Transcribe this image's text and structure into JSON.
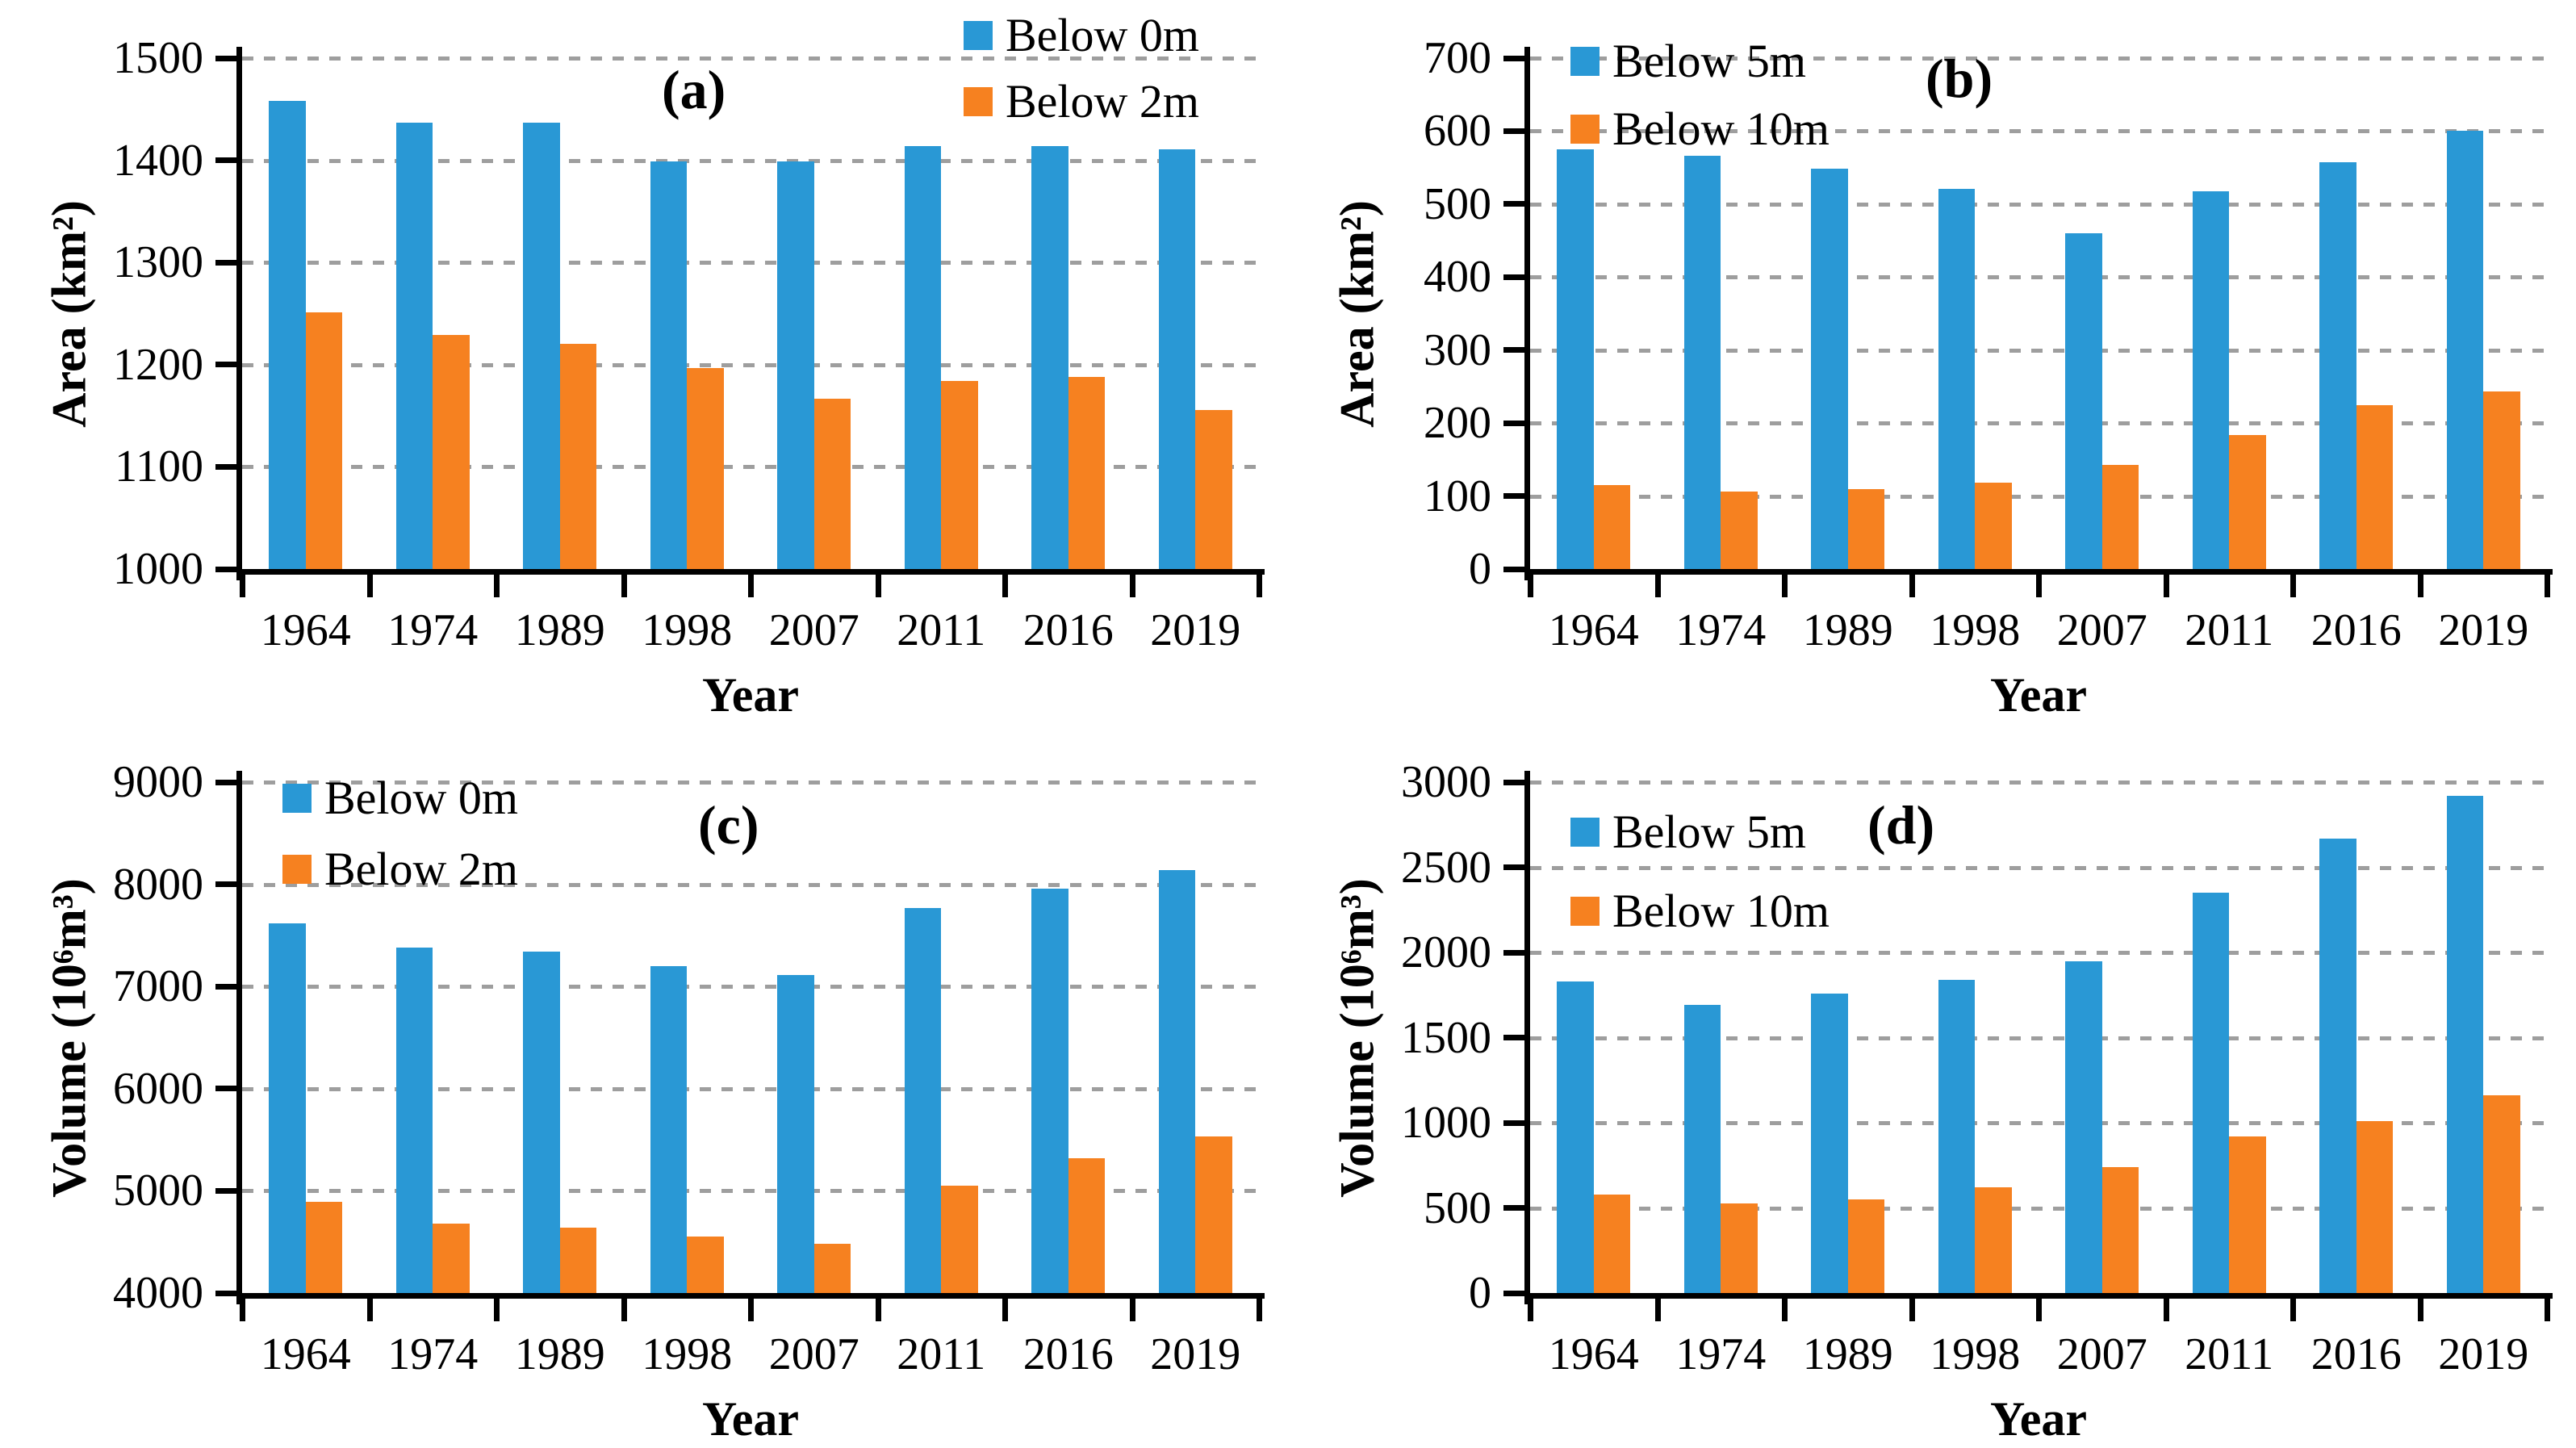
{
  "figure": {
    "background": "#ffffff",
    "grid": "2x2",
    "description_visible_text_only": true
  },
  "colors": {
    "series_blue": "#2998D5",
    "series_orange": "#F68120",
    "gridline": "#9E9E9E",
    "axis": "#000000",
    "text": "#000000"
  },
  "chart_data": [
    {
      "id": "a",
      "panel_label": "(a)",
      "type": "bar",
      "xlabel": "Year",
      "ylabel": "Area (km²)",
      "categories": [
        "1964",
        "1974",
        "1989",
        "1998",
        "2007",
        "2011",
        "2016",
        "2019"
      ],
      "series": [
        {
          "name": "Below 0m",
          "color": "#2998D5",
          "values": [
            1458,
            1437,
            1437,
            1399,
            1399,
            1414,
            1414,
            1411
          ]
        },
        {
          "name": "Below 2m",
          "color": "#F68120",
          "values": [
            1251,
            1229,
            1220,
            1197,
            1167,
            1184,
            1188,
            1156
          ]
        }
      ],
      "ylim": [
        1000,
        1500
      ],
      "ytick_step": 100,
      "grid_style": "dashed-horizontal",
      "legend_position": "top-right",
      "layout": {
        "legend_side": "right",
        "legend_top": 12,
        "legend_gap": 18,
        "letter_x": 820,
        "letter_y": 72
      }
    },
    {
      "id": "b",
      "panel_label": "(b)",
      "type": "bar",
      "xlabel": "Year",
      "ylabel": "Area (km²)",
      "categories": [
        "1964",
        "1974",
        "1989",
        "1998",
        "2007",
        "2011",
        "2016",
        "2019"
      ],
      "series": [
        {
          "name": "Below 5m",
          "color": "#2998D5",
          "values": [
            575,
            566,
            548,
            521,
            460,
            518,
            557,
            600
          ]
        },
        {
          "name": "Below 10m",
          "color": "#F68120",
          "values": [
            115,
            106,
            109,
            118,
            143,
            184,
            225,
            243
          ]
        }
      ],
      "ylim": [
        0,
        700
      ],
      "ytick_step": 100,
      "grid_style": "dashed-horizontal",
      "legend_position": "top-left",
      "layout": {
        "legend_side": "left",
        "legend_top": 44,
        "legend_gap": 20,
        "letter_x": 790,
        "letter_y": 58
      }
    },
    {
      "id": "c",
      "panel_label": "(c)",
      "type": "bar",
      "xlabel": "Year",
      "ylabel": "Volume (10⁶m³)",
      "categories": [
        "1964",
        "1974",
        "1989",
        "1998",
        "2007",
        "2011",
        "2016",
        "2019"
      ],
      "series": [
        {
          "name": "Below 0m",
          "color": "#2998D5",
          "values": [
            7620,
            7380,
            7340,
            7200,
            7110,
            7770,
            7960,
            8140
          ]
        },
        {
          "name": "Below 2m",
          "color": "#F68120",
          "values": [
            4890,
            4680,
            4640,
            4550,
            4480,
            5050,
            5320,
            5530
          ]
        }
      ],
      "ylim": [
        4000,
        9000
      ],
      "ytick_step": 1000,
      "grid_style": "dashed-horizontal",
      "legend_position": "top-left",
      "layout": {
        "legend_side": "left",
        "legend_top": 60,
        "legend_gap": 24,
        "letter_x": 865,
        "letter_y": 86
      }
    },
    {
      "id": "d",
      "panel_label": "(d)",
      "type": "bar",
      "xlabel": "Year",
      "ylabel": "Volume (10⁶m³)",
      "categories": [
        "1964",
        "1974",
        "1989",
        "1998",
        "2007",
        "2011",
        "2016",
        "2019"
      ],
      "series": [
        {
          "name": "Below 5m",
          "color": "#2998D5",
          "values": [
            1830,
            1690,
            1760,
            1840,
            1950,
            2350,
            2670,
            2920
          ]
        },
        {
          "name": "Below 10m",
          "color": "#F68120",
          "values": [
            580,
            525,
            550,
            620,
            740,
            920,
            1010,
            1160
          ]
        }
      ],
      "ylim": [
        0,
        3000
      ],
      "ytick_step": 500,
      "grid_style": "dashed-horizontal",
      "legend_position": "top-left",
      "layout": {
        "legend_side": "left",
        "legend_top": 102,
        "legend_gap": 34,
        "letter_x": 718,
        "letter_y": 86
      }
    }
  ]
}
